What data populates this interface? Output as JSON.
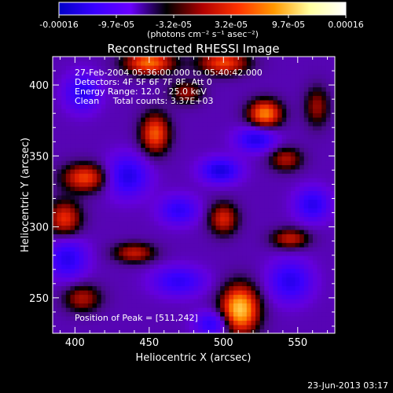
{
  "colorbar": {
    "ticks": [
      "-0.00016",
      "-9.7e-05",
      "-3.2e-05",
      "3.2e-05",
      "9.7e-05",
      "0.00016"
    ],
    "unit": "(photons cm⁻² s⁻¹ asec⁻²)",
    "colors": [
      "#0000c8",
      "#3a00ff",
      "#6a00ff",
      "#000000",
      "#b00000",
      "#ff3300",
      "#ff9900",
      "#ffffa0",
      "#ffffff"
    ]
  },
  "chart_data": {
    "type": "heatmap",
    "title": "Reconstructed RHESSI Image",
    "xlabel": "Heliocentric X (arcsec)",
    "ylabel": "Heliocentric Y (arcsec)",
    "xlim": [
      385,
      575
    ],
    "ylim": [
      225,
      420
    ],
    "x_ticks": [
      400,
      450,
      500,
      550
    ],
    "y_ticks": [
      250,
      300,
      350,
      400
    ],
    "annotations": [
      "27-Feb-2004 05:36:00.000 to 05:40:42.000",
      "Detectors: 4F 5F 6F 7F 8F, Att 0",
      "Energy Range: 12.0 - 25.0 keV",
      "Clean     Total counts: 3.37E+03"
    ],
    "peak_label": "Position of Peak = [511,242]",
    "peak": [
      511,
      242
    ],
    "sources": [
      {
        "x": 511,
        "y": 242,
        "amp": 1.0,
        "sx": 9,
        "sy": 12
      },
      {
        "x": 450,
        "y": 416,
        "amp": 0.75,
        "sx": 12,
        "sy": 6
      },
      {
        "x": 500,
        "y": 416,
        "amp": 0.65,
        "sx": 12,
        "sy": 6
      },
      {
        "x": 528,
        "y": 380,
        "amp": 0.8,
        "sx": 8,
        "sy": 7
      },
      {
        "x": 454,
        "y": 366,
        "amp": 0.7,
        "sx": 7,
        "sy": 10
      },
      {
        "x": 407,
        "y": 335,
        "amp": 0.65,
        "sx": 11,
        "sy": 7
      },
      {
        "x": 393,
        "y": 306,
        "amp": 0.6,
        "sx": 8,
        "sy": 9
      },
      {
        "x": 500,
        "y": 306,
        "amp": 0.55,
        "sx": 7,
        "sy": 8
      },
      {
        "x": 440,
        "y": 282,
        "amp": 0.5,
        "sx": 10,
        "sy": 5
      },
      {
        "x": 545,
        "y": 292,
        "amp": 0.5,
        "sx": 9,
        "sy": 5
      },
      {
        "x": 405,
        "y": 250,
        "amp": 0.45,
        "sx": 9,
        "sy": 7
      },
      {
        "x": 542,
        "y": 348,
        "amp": 0.45,
        "sx": 8,
        "sy": 6
      },
      {
        "x": 475,
        "y": 395,
        "amp": 0.4,
        "sx": 8,
        "sy": 6
      },
      {
        "x": 563,
        "y": 385,
        "amp": 0.4,
        "sx": 6,
        "sy": 10
      },
      {
        "x": 522,
        "y": 362,
        "amp": -0.55,
        "sx": 9,
        "sy": 6
      },
      {
        "x": 498,
        "y": 340,
        "amp": -0.6,
        "sx": 9,
        "sy": 6
      },
      {
        "x": 435,
        "y": 336,
        "amp": -0.55,
        "sx": 10,
        "sy": 10
      },
      {
        "x": 560,
        "y": 316,
        "amp": -0.5,
        "sx": 8,
        "sy": 8
      },
      {
        "x": 470,
        "y": 312,
        "amp": -0.45,
        "sx": 9,
        "sy": 7
      },
      {
        "x": 395,
        "y": 278,
        "amp": -0.5,
        "sx": 9,
        "sy": 10
      },
      {
        "x": 470,
        "y": 262,
        "amp": -0.45,
        "sx": 12,
        "sy": 7
      },
      {
        "x": 545,
        "y": 262,
        "amp": -0.5,
        "sx": 10,
        "sy": 10
      },
      {
        "x": 493,
        "y": 232,
        "amp": -0.5,
        "sx": 8,
        "sy": 6
      },
      {
        "x": 405,
        "y": 395,
        "amp": -0.5,
        "sx": 8,
        "sy": 9
      }
    ]
  },
  "timestamp": "23-Jun-2013 03:17"
}
